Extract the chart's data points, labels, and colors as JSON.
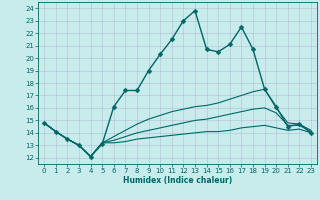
{
  "xlabel": "Humidex (Indice chaleur)",
  "ylabel": "",
  "xlim": [
    -0.5,
    23.5
  ],
  "ylim": [
    11.5,
    24.5
  ],
  "yticks": [
    12,
    13,
    14,
    15,
    16,
    17,
    18,
    19,
    20,
    21,
    22,
    23,
    24
  ],
  "xticks": [
    0,
    1,
    2,
    3,
    4,
    5,
    6,
    7,
    8,
    9,
    10,
    11,
    12,
    13,
    14,
    15,
    16,
    17,
    18,
    19,
    20,
    21,
    22,
    23
  ],
  "bg_color": "#c8ecec",
  "grid_color": "#aaaacc",
  "line_color": "#006666",
  "lines": [
    {
      "x": [
        0,
        1,
        2,
        3,
        4,
        5,
        6,
        7,
        8,
        9,
        10,
        11,
        12,
        13,
        14,
        15,
        16,
        17,
        18,
        19,
        20,
        21,
        22,
        23
      ],
      "y": [
        14.8,
        14.1,
        13.5,
        13.0,
        12.1,
        13.1,
        16.1,
        17.4,
        17.4,
        19.0,
        20.3,
        21.5,
        23.0,
        23.8,
        20.7,
        20.5,
        21.1,
        22.5,
        20.7,
        17.5,
        16.1,
        14.5,
        14.7,
        14.0
      ],
      "marker": "D",
      "markersize": 2.5,
      "linewidth": 1.0,
      "has_marker": true
    },
    {
      "x": [
        0,
        1,
        2,
        3,
        4,
        5,
        6,
        7,
        8,
        9,
        10,
        11,
        12,
        13,
        14,
        15,
        16,
        17,
        18,
        19,
        20,
        21,
        22,
        23
      ],
      "y": [
        14.8,
        14.1,
        13.5,
        13.0,
        12.1,
        13.2,
        13.7,
        14.2,
        14.7,
        15.1,
        15.4,
        15.7,
        15.9,
        16.1,
        16.2,
        16.4,
        16.7,
        17.0,
        17.3,
        17.5,
        16.0,
        14.8,
        14.7,
        14.2
      ],
      "marker": null,
      "markersize": 0,
      "linewidth": 0.8,
      "has_marker": false
    },
    {
      "x": [
        0,
        1,
        2,
        3,
        4,
        5,
        6,
        7,
        8,
        9,
        10,
        11,
        12,
        13,
        14,
        15,
        16,
        17,
        18,
        19,
        20,
        21,
        22,
        23
      ],
      "y": [
        14.8,
        14.1,
        13.5,
        13.0,
        12.1,
        13.2,
        13.4,
        13.7,
        14.0,
        14.2,
        14.4,
        14.6,
        14.8,
        15.0,
        15.1,
        15.3,
        15.5,
        15.7,
        15.9,
        16.0,
        15.6,
        14.6,
        14.6,
        14.1
      ],
      "marker": null,
      "markersize": 0,
      "linewidth": 0.8,
      "has_marker": false
    },
    {
      "x": [
        0,
        1,
        2,
        3,
        4,
        5,
        6,
        7,
        8,
        9,
        10,
        11,
        12,
        13,
        14,
        15,
        16,
        17,
        18,
        19,
        20,
        21,
        22,
        23
      ],
      "y": [
        14.8,
        14.1,
        13.5,
        13.0,
        12.1,
        13.2,
        13.2,
        13.3,
        13.5,
        13.6,
        13.7,
        13.8,
        13.9,
        14.0,
        14.1,
        14.1,
        14.2,
        14.4,
        14.5,
        14.6,
        14.4,
        14.2,
        14.3,
        14.0
      ],
      "marker": null,
      "markersize": 0,
      "linewidth": 0.8,
      "has_marker": false
    }
  ]
}
